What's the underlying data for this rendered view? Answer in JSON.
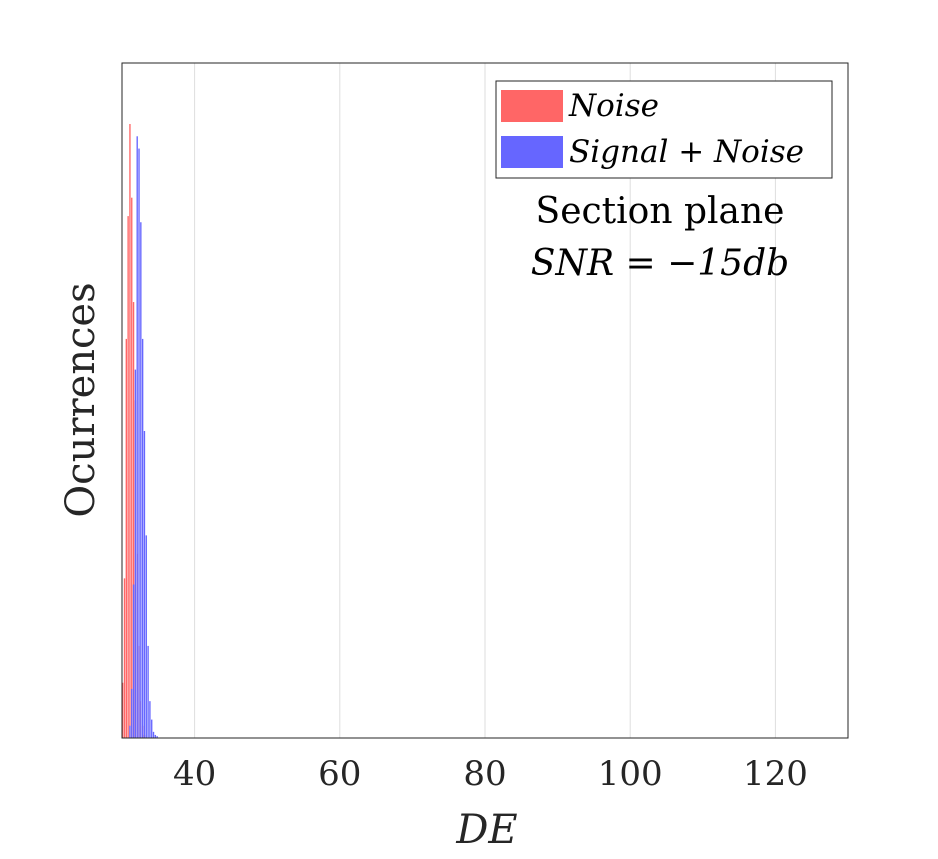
{
  "chart_data": {
    "type": "bar",
    "xlabel": "DE",
    "ylabel": "Ocurrences",
    "xlim": [
      30,
      130
    ],
    "ylim": [
      0,
      100
    ],
    "x_ticks": [
      40,
      60,
      80,
      100,
      120
    ],
    "grid": "x-major",
    "legend_position": "top-right",
    "annotation_line1": "Section plane",
    "annotation_line2": "SNR = −15db",
    "series": [
      {
        "name": "Noise",
        "color": "#ff6666",
        "bin_width": 0.25,
        "x": [
          30.0,
          30.25,
          30.5,
          30.75,
          31.0,
          31.25,
          31.5,
          31.75,
          32.0,
          32.25,
          32.5,
          32.75,
          33.0
        ],
        "values": [
          9,
          26,
          65,
          85,
          100,
          88,
          71,
          55,
          30,
          15,
          6,
          2,
          0.5
        ]
      },
      {
        "name": "Signal + Noise",
        "color": "#6666ff",
        "bin_width": 0.25,
        "x": [
          31.0,
          31.25,
          31.5,
          31.75,
          32.0,
          32.25,
          32.5,
          32.75,
          33.0,
          33.25,
          33.5,
          33.75,
          34.0,
          34.25,
          34.5,
          34.75
        ],
        "values": [
          2,
          8,
          25,
          60,
          98,
          96,
          84,
          65,
          50,
          33,
          15,
          6,
          3,
          1,
          0.5,
          0.3
        ]
      }
    ]
  }
}
